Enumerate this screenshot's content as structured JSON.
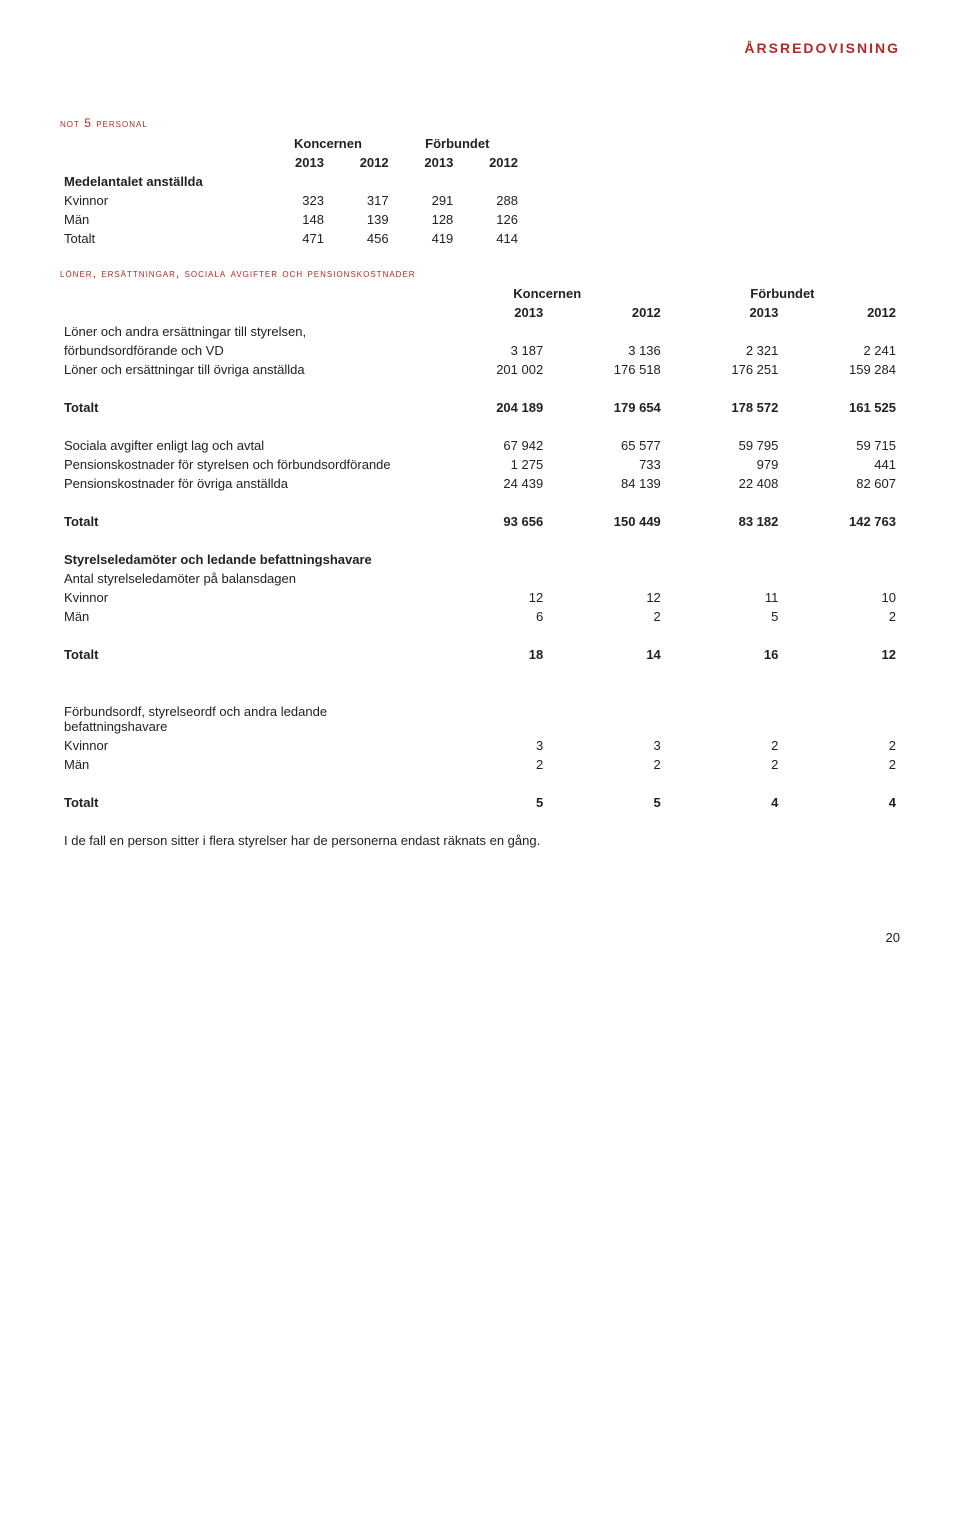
{
  "header": {
    "title": "ÅRSREDOVISNING"
  },
  "note5": {
    "title": "not 5 personal",
    "groupHeaders": [
      "Koncernen",
      "Förbundet"
    ],
    "yearHeaders": [
      "2013",
      "2012",
      "2013",
      "2012"
    ],
    "rowLabel": "Medelantalet anställda",
    "rows": [
      {
        "label": "Kvinnor",
        "vals": [
          "323",
          "317",
          "291",
          "288"
        ]
      },
      {
        "label": "Män",
        "vals": [
          "148",
          "139",
          "128",
          "126"
        ]
      },
      {
        "label": "Totalt",
        "vals": [
          "471",
          "456",
          "419",
          "414"
        ]
      }
    ]
  },
  "salaries": {
    "title": "löner, ersättningar, sociala avgifter och pensionskostnader",
    "groupHeaders": [
      "Koncernen",
      "Förbundet"
    ],
    "yearHeaders": [
      "2013",
      "2012",
      "2013",
      "2012"
    ],
    "introRow": "Löner och andra ersättningar till styrelsen,",
    "rows1": [
      {
        "label": "förbundsordförande och VD",
        "vals": [
          "3 187",
          "3 136",
          "2 321",
          "2 241"
        ]
      },
      {
        "label": "Löner och ersättningar till övriga anställda",
        "vals": [
          "201 002",
          "176 518",
          "176 251",
          "159 284"
        ]
      }
    ],
    "total1": {
      "label": "Totalt",
      "vals": [
        "204 189",
        "179 654",
        "178 572",
        "161 525"
      ]
    },
    "rows2": [
      {
        "label": "Sociala avgifter enligt lag och avtal",
        "vals": [
          "67 942",
          "65 577",
          "59 795",
          "59 715"
        ]
      },
      {
        "label": "Pensionskostnader för styrelsen och förbundsordförande",
        "vals": [
          "1 275",
          "733",
          "979",
          "441"
        ]
      },
      {
        "label": "Pensionskostnader för övriga anställda",
        "vals": [
          "24 439",
          "84 139",
          "22 408",
          "82 607"
        ]
      }
    ],
    "total2": {
      "label": "Totalt",
      "vals": [
        "93 656",
        "150 449",
        "83 182",
        "142 763"
      ]
    }
  },
  "board": {
    "heading": "Styrelseledamöter och ledande befattningshavare",
    "sub": "Antal styrelseledamöter på balansdagen",
    "rows": [
      {
        "label": "Kvinnor",
        "vals": [
          "12",
          "12",
          "11",
          "10"
        ]
      },
      {
        "label": "Män",
        "vals": [
          "6",
          "2",
          "5",
          "2"
        ]
      }
    ],
    "total": {
      "label": "Totalt",
      "vals": [
        "18",
        "14",
        "16",
        "12"
      ]
    }
  },
  "leaders": {
    "heading": "Förbundsordf, styrelseordf och andra ledande befattningshavare",
    "rows": [
      {
        "label": "Kvinnor",
        "vals": [
          "3",
          "3",
          "2",
          "2"
        ]
      },
      {
        "label": "Män",
        "vals": [
          "2",
          "2",
          "2",
          "2"
        ]
      }
    ],
    "total": {
      "label": "Totalt",
      "vals": [
        "5",
        "5",
        "4",
        "4"
      ]
    },
    "footnote": "I de fall en person sitter i flera styrelser har de personerna endast räknats en gång."
  },
  "pageNumber": "20"
}
